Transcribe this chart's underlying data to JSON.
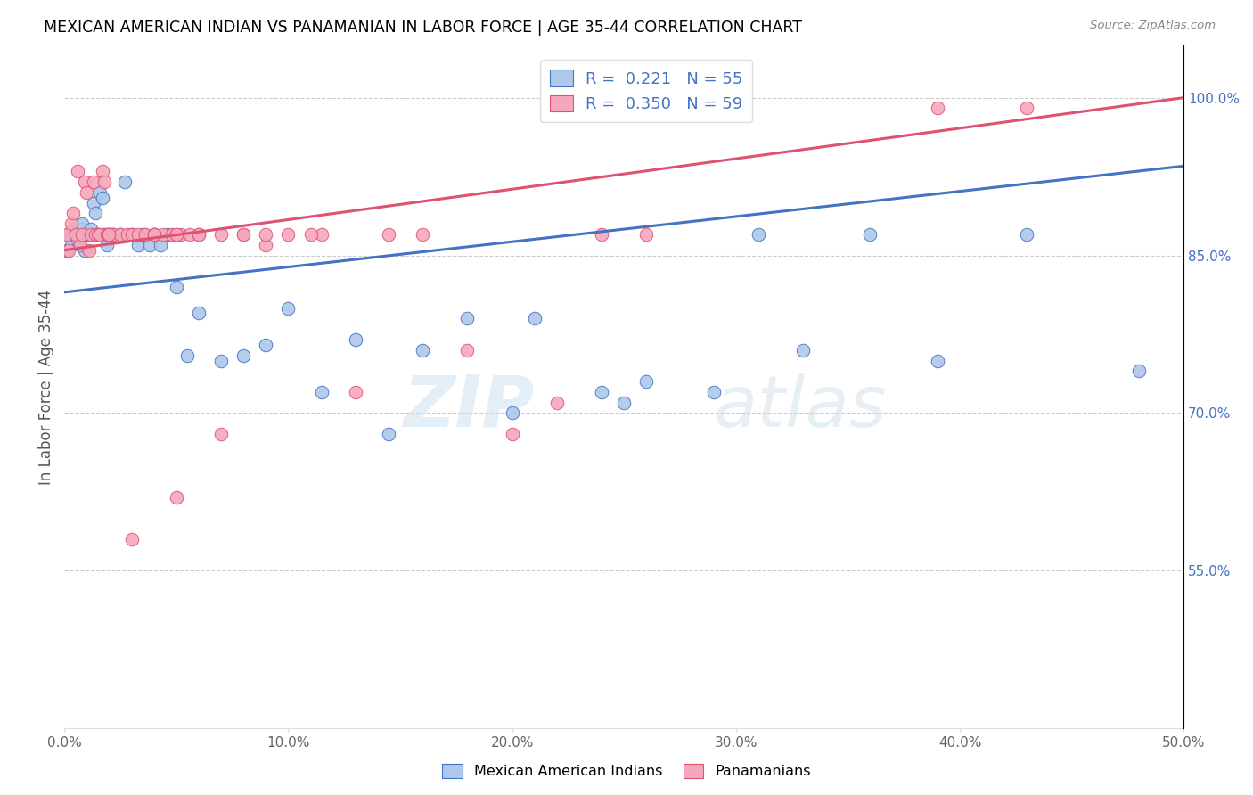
{
  "title": "MEXICAN AMERICAN INDIAN VS PANAMANIAN IN LABOR FORCE | AGE 35-44 CORRELATION CHART",
  "source": "Source: ZipAtlas.com",
  "xlabel_ticks": [
    "0.0%",
    "10.0%",
    "20.0%",
    "30.0%",
    "40.0%",
    "50.0%"
  ],
  "xlabel_vals": [
    0.0,
    0.1,
    0.2,
    0.3,
    0.4,
    0.5
  ],
  "ylabel_right": [
    "100.0%",
    "85.0%",
    "70.0%",
    "55.0%"
  ],
  "ylabel_right_vals": [
    1.0,
    0.85,
    0.7,
    0.55
  ],
  "ylabel_label": "In Labor Force | Age 35-44",
  "xlim": [
    0.0,
    0.5
  ],
  "ylim": [
    0.4,
    1.05
  ],
  "legend_r_blue": "0.221",
  "legend_n_blue": "55",
  "legend_r_pink": "0.350",
  "legend_n_pink": "59",
  "watermark_zip": "ZIP",
  "watermark_atlas": "atlas",
  "blue_color": "#adc8e8",
  "pink_color": "#f5a8bc",
  "blue_line_color": "#4472c4",
  "pink_line_color": "#e05070",
  "blue_x": [
    0.001,
    0.002,
    0.003,
    0.004,
    0.005,
    0.006,
    0.007,
    0.008,
    0.009,
    0.01,
    0.011,
    0.012,
    0.013,
    0.014,
    0.015,
    0.016,
    0.017,
    0.018,
    0.019,
    0.02,
    0.021,
    0.022,
    0.025,
    0.027,
    0.03,
    0.033,
    0.035,
    0.038,
    0.04,
    0.043,
    0.046,
    0.05,
    0.055,
    0.06,
    0.07,
    0.08,
    0.09,
    0.1,
    0.115,
    0.13,
    0.145,
    0.16,
    0.18,
    0.21,
    0.24,
    0.26,
    0.29,
    0.33,
    0.39,
    0.43,
    0.2,
    0.25,
    0.31,
    0.36,
    0.48
  ],
  "blue_y": [
    0.855,
    0.87,
    0.86,
    0.875,
    0.87,
    0.865,
    0.875,
    0.88,
    0.855,
    0.87,
    0.87,
    0.875,
    0.9,
    0.89,
    0.87,
    0.91,
    0.905,
    0.87,
    0.86,
    0.87,
    0.87,
    0.87,
    0.87,
    0.92,
    0.87,
    0.86,
    0.87,
    0.86,
    0.87,
    0.86,
    0.87,
    0.82,
    0.755,
    0.795,
    0.75,
    0.755,
    0.765,
    0.8,
    0.72,
    0.77,
    0.68,
    0.76,
    0.79,
    0.79,
    0.72,
    0.73,
    0.72,
    0.76,
    0.75,
    0.87,
    0.7,
    0.71,
    0.87,
    0.87,
    0.74
  ],
  "pink_x": [
    0.001,
    0.002,
    0.003,
    0.004,
    0.005,
    0.006,
    0.007,
    0.008,
    0.009,
    0.01,
    0.011,
    0.012,
    0.013,
    0.014,
    0.015,
    0.016,
    0.017,
    0.018,
    0.019,
    0.02,
    0.022,
    0.025,
    0.028,
    0.03,
    0.033,
    0.036,
    0.04,
    0.044,
    0.048,
    0.052,
    0.056,
    0.06,
    0.07,
    0.08,
    0.09,
    0.1,
    0.115,
    0.13,
    0.145,
    0.16,
    0.18,
    0.2,
    0.22,
    0.24,
    0.26,
    0.04,
    0.05,
    0.07,
    0.09,
    0.11,
    0.05,
    0.03,
    0.02,
    0.06,
    0.08,
    0.04,
    0.05,
    0.39,
    0.43
  ],
  "pink_y": [
    0.87,
    0.855,
    0.88,
    0.89,
    0.87,
    0.93,
    0.86,
    0.87,
    0.92,
    0.91,
    0.855,
    0.87,
    0.92,
    0.87,
    0.87,
    0.87,
    0.93,
    0.92,
    0.87,
    0.87,
    0.87,
    0.87,
    0.87,
    0.87,
    0.87,
    0.87,
    0.87,
    0.87,
    0.87,
    0.87,
    0.87,
    0.87,
    0.87,
    0.87,
    0.86,
    0.87,
    0.87,
    0.72,
    0.87,
    0.87,
    0.76,
    0.68,
    0.71,
    0.87,
    0.87,
    0.87,
    0.62,
    0.68,
    0.87,
    0.87,
    0.87,
    0.58,
    0.87,
    0.87,
    0.87,
    0.87,
    0.87,
    0.99,
    0.99
  ]
}
